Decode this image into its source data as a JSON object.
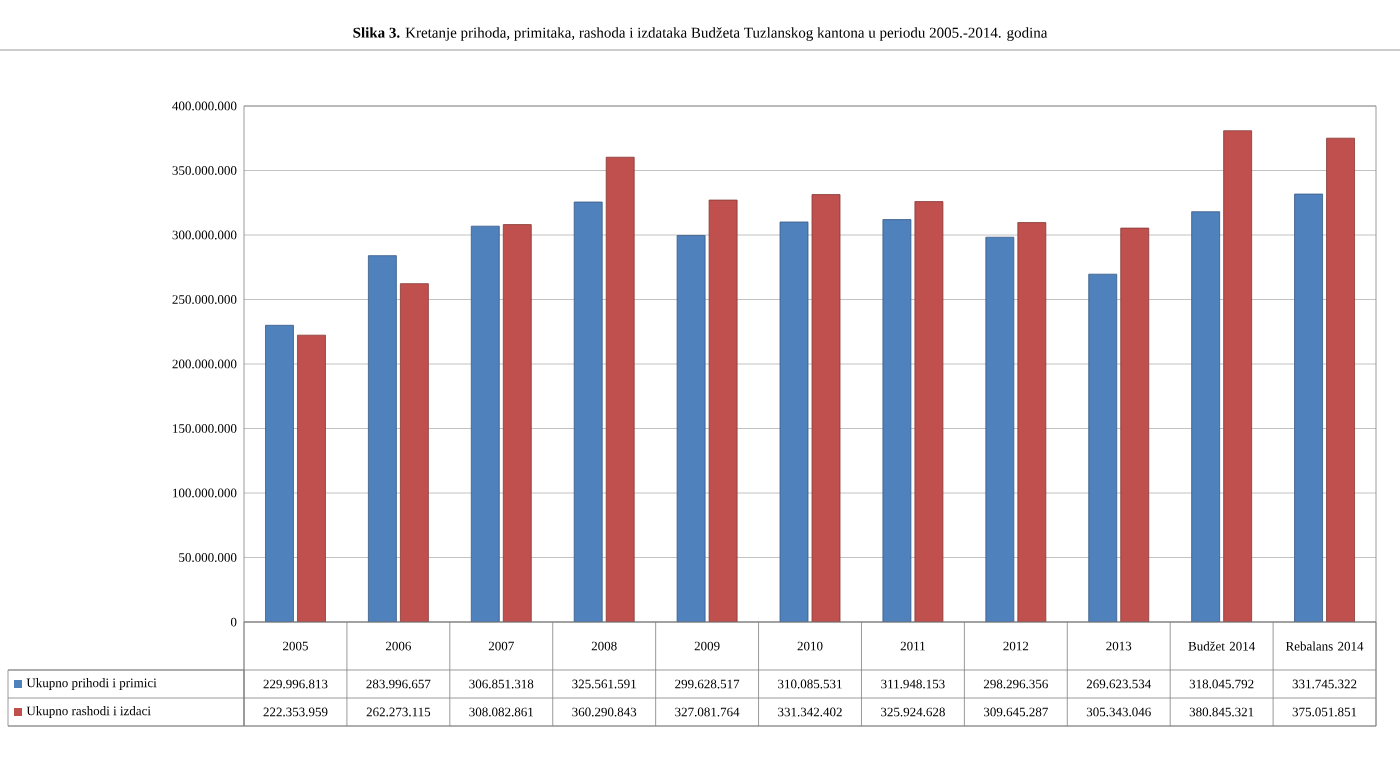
{
  "chart_data": {
    "type": "bar",
    "title": "**Slika 3.** Kretanje prihoda, primitaka, rashoda i izdataka Budžeta Tuzlanskog kantona u periodu 2005.-2014. godina",
    "categories": [
      "2005",
      "2006",
      "2007",
      "2008",
      "2009",
      "2010",
      "2011",
      "2012",
      "2013",
      "Budžet 2014",
      "Rebalans 2014"
    ],
    "series": [
      {
        "name": "Ukupno prihodi i primici",
        "color": "#4f81bd",
        "values": [
          229996813,
          283996657,
          306851318,
          325561591,
          299628517,
          310085531,
          311948153,
          298296356,
          269623534,
          318045792,
          331745322
        ],
        "value_labels": [
          "229.996.813",
          "283.996.657",
          "306.851.318",
          "325.561.591",
          "299.628.517",
          "310.085.531",
          "311.948.153",
          "298.296.356",
          "269.623.534",
          "318.045.792",
          "331.745.322"
        ]
      },
      {
        "name": "Ukupno rashodi i izdaci",
        "color": "#c0504d",
        "values": [
          222353959,
          262273115,
          308082861,
          360290843,
          327081764,
          331342402,
          325924628,
          309645287,
          305343046,
          380845321,
          375051851
        ],
        "value_labels": [
          "222.353.959",
          "262.273.115",
          "308.082.861",
          "360.290.843",
          "327.081.764",
          "331.342.402",
          "325.924.628",
          "309.645.287",
          "305.343.046",
          "380.845.321",
          "375.051.851"
        ]
      }
    ],
    "ylim": [
      0,
      400000000
    ],
    "yticks": [
      0,
      {
        "value": 50000000,
        "label": "50.000.000"
      },
      {
        "value": 100000000,
        "label": "100.000.000"
      },
      {
        "value": 150000000,
        "label": "150.000.000"
      },
      {
        "value": 200000000,
        "label": "200.000.000"
      },
      {
        "value": 250000000,
        "label": "250.000.000"
      },
      {
        "value": 300000000,
        "label": "300.000.000"
      },
      {
        "value": 350000000,
        "label": "350.000.000"
      },
      {
        "value": 400000000,
        "label": "400.000.000"
      }
    ],
    "grid": "y",
    "legend": "bottom"
  }
}
